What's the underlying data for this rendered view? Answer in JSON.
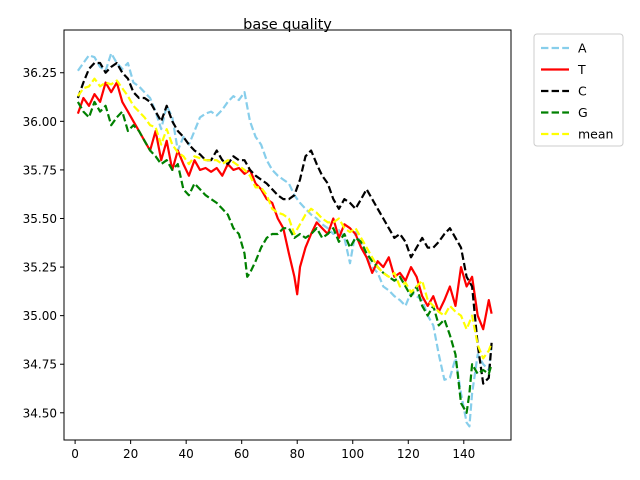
{
  "chart_data": {
    "type": "line",
    "title": "base quality",
    "xlabel": "",
    "ylabel": "",
    "xlim": [
      -4,
      157
    ],
    "ylim": [
      34.36,
      36.47
    ],
    "xticks": [
      0,
      20,
      40,
      60,
      80,
      100,
      120,
      140
    ],
    "yticks": [
      34.5,
      34.75,
      35.0,
      35.25,
      35.5,
      35.75,
      36.0,
      36.25
    ],
    "ytick_labels": [
      "34.50",
      "34.75",
      "35.00",
      "35.25",
      "35.50",
      "35.75",
      "36.00",
      "36.25"
    ],
    "grid": false,
    "legend_placement": "outside-top-right",
    "series": [
      {
        "name": "A",
        "color": "#87ceeb",
        "dash": "dashed",
        "x": [
          1,
          3,
          5,
          7,
          9,
          11,
          13,
          15,
          17,
          19,
          21,
          23,
          25,
          27,
          29,
          31,
          33,
          35,
          37,
          39,
          41,
          43,
          45,
          47,
          49,
          51,
          53,
          55,
          57,
          59,
          61,
          63,
          65,
          67,
          69,
          71,
          73,
          75,
          77,
          79,
          81,
          83,
          85,
          87,
          89,
          91,
          93,
          95,
          97,
          99,
          101,
          103,
          105,
          107,
          109,
          111,
          113,
          115,
          117,
          119,
          121,
          123,
          125,
          127,
          129,
          131,
          133,
          135,
          137,
          139,
          141,
          142,
          143,
          145,
          147,
          149,
          150
        ],
        "y": [
          36.26,
          36.3,
          36.34,
          36.33,
          36.28,
          36.26,
          36.35,
          36.3,
          36.27,
          36.3,
          36.2,
          36.18,
          36.15,
          36.12,
          36.05,
          35.96,
          36.08,
          36.02,
          35.85,
          35.92,
          35.88,
          35.95,
          36.02,
          36.04,
          36.05,
          36.03,
          36.06,
          36.1,
          36.13,
          36.11,
          36.15,
          36.0,
          35.92,
          35.88,
          35.8,
          35.75,
          35.72,
          35.7,
          35.68,
          35.62,
          35.58,
          35.55,
          35.52,
          35.5,
          35.47,
          35.45,
          35.42,
          35.44,
          35.4,
          35.27,
          35.43,
          35.37,
          35.3,
          35.25,
          35.22,
          35.15,
          35.13,
          35.1,
          35.08,
          35.05,
          35.12,
          35.1,
          35.08,
          35.0,
          34.95,
          34.8,
          34.67,
          34.68,
          34.78,
          34.6,
          34.45,
          34.43,
          34.6,
          34.8,
          34.75,
          34.72,
          34.85
        ]
      },
      {
        "name": "T",
        "color": "#ff0000",
        "dash": "solid",
        "x": [
          1,
          3,
          5,
          7,
          9,
          11,
          13,
          15,
          17,
          19,
          21,
          23,
          25,
          27,
          29,
          31,
          33,
          35,
          37,
          39,
          41,
          43,
          45,
          47,
          49,
          51,
          53,
          55,
          57,
          59,
          61,
          63,
          65,
          67,
          69,
          71,
          73,
          75,
          77,
          79,
          80,
          81,
          83,
          85,
          87,
          89,
          91,
          93,
          95,
          97,
          99,
          101,
          103,
          105,
          107,
          109,
          111,
          113,
          115,
          117,
          119,
          121,
          123,
          125,
          127,
          129,
          131,
          133,
          135,
          137,
          139,
          141,
          143,
          145,
          147,
          149,
          150
        ],
        "y": [
          36.04,
          36.12,
          36.08,
          36.14,
          36.1,
          36.2,
          36.15,
          36.2,
          36.1,
          36.05,
          36.0,
          35.95,
          35.9,
          35.85,
          35.95,
          35.8,
          35.9,
          35.75,
          35.85,
          35.78,
          35.72,
          35.8,
          35.75,
          35.76,
          35.74,
          35.76,
          35.72,
          35.78,
          35.75,
          35.76,
          35.73,
          35.75,
          35.68,
          35.65,
          35.6,
          35.58,
          35.5,
          35.45,
          35.32,
          35.2,
          35.11,
          35.25,
          35.35,
          35.42,
          35.48,
          35.45,
          35.42,
          35.5,
          35.4,
          35.47,
          35.45,
          35.42,
          35.35,
          35.3,
          35.22,
          35.28,
          35.25,
          35.3,
          35.2,
          35.22,
          35.18,
          35.25,
          35.2,
          35.1,
          35.05,
          35.1,
          35.02,
          35.08,
          35.15,
          35.05,
          35.25,
          35.15,
          35.2,
          35.0,
          34.93,
          35.08,
          35.01
        ]
      },
      {
        "name": "C",
        "color": "#000000",
        "dash": "dashed",
        "x": [
          1,
          3,
          5,
          7,
          9,
          11,
          13,
          15,
          17,
          19,
          21,
          23,
          25,
          27,
          29,
          31,
          33,
          35,
          37,
          39,
          41,
          43,
          45,
          47,
          49,
          51,
          53,
          55,
          57,
          59,
          61,
          63,
          65,
          67,
          69,
          71,
          73,
          75,
          77,
          79,
          81,
          83,
          85,
          87,
          89,
          91,
          93,
          95,
          97,
          99,
          101,
          103,
          105,
          107,
          109,
          111,
          113,
          115,
          117,
          119,
          121,
          123,
          125,
          127,
          129,
          131,
          133,
          135,
          137,
          139,
          141,
          143,
          145,
          147,
          149,
          150
        ],
        "y": [
          36.12,
          36.2,
          36.27,
          36.3,
          36.3,
          36.25,
          36.28,
          36.3,
          36.25,
          36.22,
          36.15,
          36.12,
          36.12,
          36.1,
          36.05,
          36.0,
          36.08,
          36.0,
          35.95,
          35.92,
          35.88,
          35.85,
          35.83,
          35.8,
          35.8,
          35.85,
          35.8,
          35.78,
          35.82,
          35.8,
          35.8,
          35.75,
          35.72,
          35.7,
          35.68,
          35.65,
          35.62,
          35.6,
          35.6,
          35.62,
          35.7,
          35.82,
          35.85,
          35.78,
          35.72,
          35.68,
          35.6,
          35.55,
          35.6,
          35.58,
          35.55,
          35.6,
          35.65,
          35.6,
          35.55,
          35.5,
          35.45,
          35.4,
          35.42,
          35.38,
          35.3,
          35.35,
          35.4,
          35.35,
          35.35,
          35.38,
          35.42,
          35.45,
          35.4,
          35.35,
          35.2,
          35.15,
          34.85,
          34.65,
          34.68,
          34.86
        ]
      },
      {
        "name": "G",
        "color": "#008000",
        "dash": "dashed",
        "x": [
          1,
          3,
          5,
          7,
          9,
          11,
          13,
          15,
          17,
          19,
          21,
          23,
          25,
          27,
          29,
          31,
          33,
          35,
          37,
          39,
          41,
          43,
          45,
          47,
          49,
          51,
          53,
          55,
          57,
          59,
          61,
          62,
          63,
          65,
          67,
          69,
          71,
          73,
          75,
          77,
          79,
          81,
          83,
          85,
          87,
          89,
          91,
          93,
          95,
          97,
          99,
          101,
          103,
          105,
          107,
          109,
          111,
          113,
          115,
          117,
          119,
          121,
          123,
          125,
          127,
          129,
          131,
          133,
          135,
          137,
          139,
          141,
          142,
          143,
          145,
          147,
          149,
          150
        ],
        "y": [
          36.1,
          36.05,
          36.02,
          36.1,
          36.05,
          36.08,
          35.98,
          36.02,
          36.05,
          35.95,
          35.98,
          35.95,
          35.9,
          35.85,
          35.82,
          35.78,
          35.8,
          35.75,
          35.78,
          35.65,
          35.62,
          35.68,
          35.65,
          35.62,
          35.6,
          35.58,
          35.55,
          35.52,
          35.45,
          35.42,
          35.32,
          35.2,
          35.22,
          35.28,
          35.35,
          35.4,
          35.42,
          35.42,
          35.45,
          35.45,
          35.4,
          35.42,
          35.4,
          35.42,
          35.45,
          35.4,
          35.42,
          35.45,
          35.38,
          35.42,
          35.35,
          35.4,
          35.38,
          35.32,
          35.28,
          35.25,
          35.22,
          35.2,
          35.18,
          35.2,
          35.15,
          35.1,
          35.15,
          35.05,
          35.0,
          35.05,
          34.95,
          34.98,
          34.9,
          34.8,
          34.55,
          34.5,
          34.6,
          34.75,
          34.7,
          34.72,
          34.7,
          34.75
        ]
      },
      {
        "name": "mean",
        "color": "#ffff00",
        "dash": "dashed",
        "x": [
          1,
          3,
          5,
          7,
          9,
          11,
          13,
          15,
          17,
          19,
          21,
          23,
          25,
          27,
          29,
          31,
          33,
          35,
          37,
          39,
          41,
          43,
          45,
          47,
          49,
          51,
          53,
          55,
          57,
          59,
          61,
          63,
          65,
          67,
          69,
          71,
          73,
          75,
          77,
          79,
          81,
          83,
          85,
          87,
          89,
          91,
          93,
          95,
          97,
          99,
          101,
          103,
          105,
          107,
          109,
          111,
          113,
          115,
          117,
          119,
          121,
          123,
          125,
          127,
          129,
          131,
          133,
          135,
          137,
          139,
          141,
          143,
          145,
          147,
          149,
          150
        ],
        "y": [
          36.13,
          36.17,
          36.18,
          36.22,
          36.18,
          36.2,
          36.19,
          36.21,
          36.17,
          36.13,
          36.08,
          36.05,
          36.02,
          35.98,
          35.97,
          35.88,
          35.96,
          35.88,
          35.84,
          35.82,
          35.78,
          35.82,
          35.81,
          35.8,
          35.8,
          35.8,
          35.78,
          35.8,
          35.79,
          35.77,
          35.75,
          35.72,
          35.66,
          35.66,
          35.62,
          35.55,
          35.53,
          35.52,
          35.5,
          35.42,
          35.47,
          35.52,
          35.55,
          35.53,
          35.5,
          35.48,
          35.48,
          35.5,
          35.45,
          35.43,
          35.45,
          35.4,
          35.35,
          35.3,
          35.25,
          35.22,
          35.2,
          35.22,
          35.15,
          35.17,
          35.12,
          35.15,
          35.18,
          35.08,
          35.05,
          35.02,
          35.0,
          35.05,
          35.02,
          35.0,
          34.93,
          35.0,
          34.85,
          34.78,
          34.82,
          34.86
        ]
      }
    ]
  }
}
